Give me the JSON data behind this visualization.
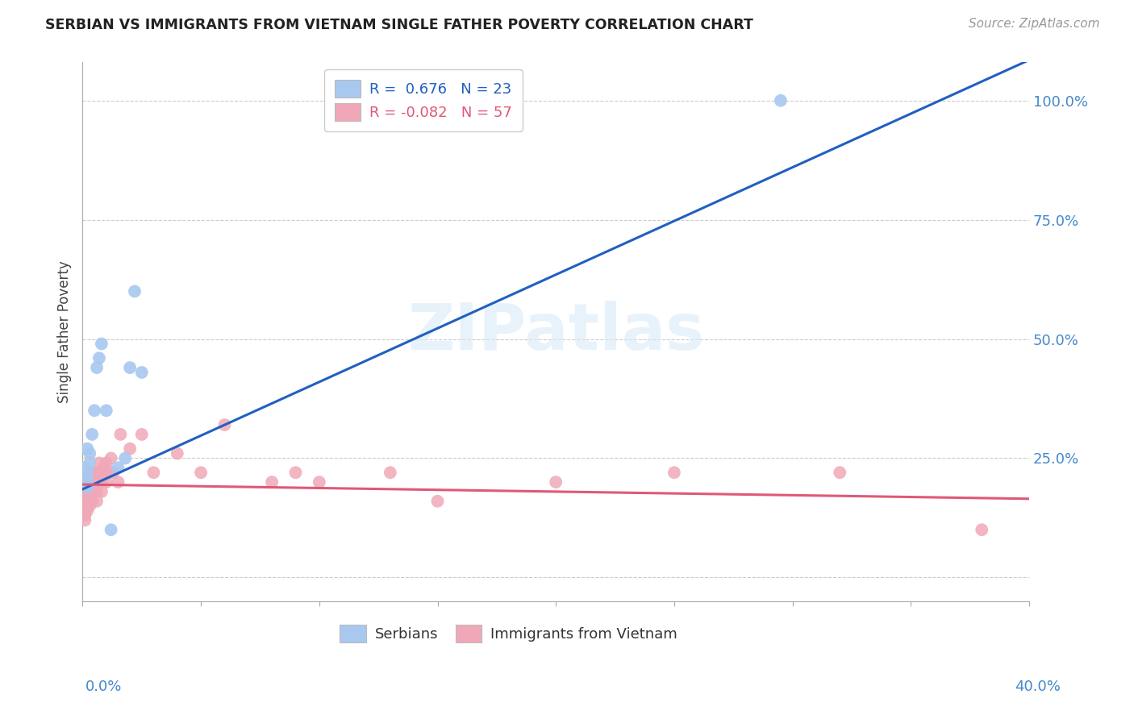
{
  "title": "SERBIAN VS IMMIGRANTS FROM VIETNAM SINGLE FATHER POVERTY CORRELATION CHART",
  "source": "Source: ZipAtlas.com",
  "ylabel": "Single Father Poverty",
  "ytick_labels": [
    "",
    "25.0%",
    "50.0%",
    "75.0%",
    "100.0%"
  ],
  "ytick_values": [
    0.0,
    0.25,
    0.5,
    0.75,
    1.0
  ],
  "xlim": [
    0.0,
    0.4
  ],
  "ylim": [
    -0.05,
    1.08
  ],
  "plot_ylim": [
    -0.05,
    1.08
  ],
  "serbian_color": "#a8c8f0",
  "vietnam_color": "#f0a8b8",
  "line_blue": "#2060c0",
  "line_pink": "#e05878",
  "serbian_x": [
    0.001,
    0.001,
    0.001,
    0.001,
    0.002,
    0.002,
    0.002,
    0.002,
    0.003,
    0.003,
    0.004,
    0.005,
    0.006,
    0.007,
    0.008,
    0.01,
    0.012,
    0.015,
    0.018,
    0.02,
    0.022,
    0.025,
    0.295
  ],
  "serbian_y": [
    0.2,
    0.21,
    0.22,
    0.23,
    0.19,
    0.2,
    0.22,
    0.27,
    0.24,
    0.26,
    0.3,
    0.35,
    0.44,
    0.46,
    0.49,
    0.35,
    0.1,
    0.23,
    0.25,
    0.44,
    0.6,
    0.43,
    1.0
  ],
  "vietnam_x": [
    0.001,
    0.001,
    0.001,
    0.001,
    0.001,
    0.001,
    0.001,
    0.002,
    0.002,
    0.002,
    0.002,
    0.002,
    0.003,
    0.003,
    0.003,
    0.003,
    0.003,
    0.004,
    0.004,
    0.004,
    0.004,
    0.005,
    0.005,
    0.005,
    0.006,
    0.006,
    0.006,
    0.006,
    0.007,
    0.007,
    0.007,
    0.008,
    0.008,
    0.008,
    0.009,
    0.01,
    0.01,
    0.011,
    0.012,
    0.013,
    0.015,
    0.016,
    0.02,
    0.025,
    0.03,
    0.04,
    0.05,
    0.06,
    0.08,
    0.09,
    0.1,
    0.13,
    0.15,
    0.2,
    0.25,
    0.32,
    0.38
  ],
  "vietnam_y": [
    0.16,
    0.17,
    0.18,
    0.19,
    0.14,
    0.13,
    0.12,
    0.18,
    0.19,
    0.15,
    0.14,
    0.2,
    0.18,
    0.19,
    0.2,
    0.15,
    0.21,
    0.2,
    0.22,
    0.16,
    0.18,
    0.2,
    0.18,
    0.22,
    0.22,
    0.18,
    0.2,
    0.16,
    0.2,
    0.22,
    0.24,
    0.2,
    0.18,
    0.22,
    0.23,
    0.24,
    0.2,
    0.22,
    0.25,
    0.22,
    0.2,
    0.3,
    0.27,
    0.3,
    0.22,
    0.26,
    0.22,
    0.32,
    0.2,
    0.22,
    0.2,
    0.22,
    0.16,
    0.2,
    0.22,
    0.22,
    0.1
  ],
  "blue_line_x": [
    0.0,
    0.4
  ],
  "blue_line_y": [
    0.185,
    1.085
  ],
  "pink_line_x": [
    0.0,
    0.4
  ],
  "pink_line_y": [
    0.195,
    0.165
  ],
  "watermark_text": "ZIPatlas",
  "legend1_labels": [
    "R =  0.676   N = 23",
    "R = -0.082   N = 57"
  ],
  "legend2_labels": [
    "Serbians",
    "Immigrants from Vietnam"
  ]
}
